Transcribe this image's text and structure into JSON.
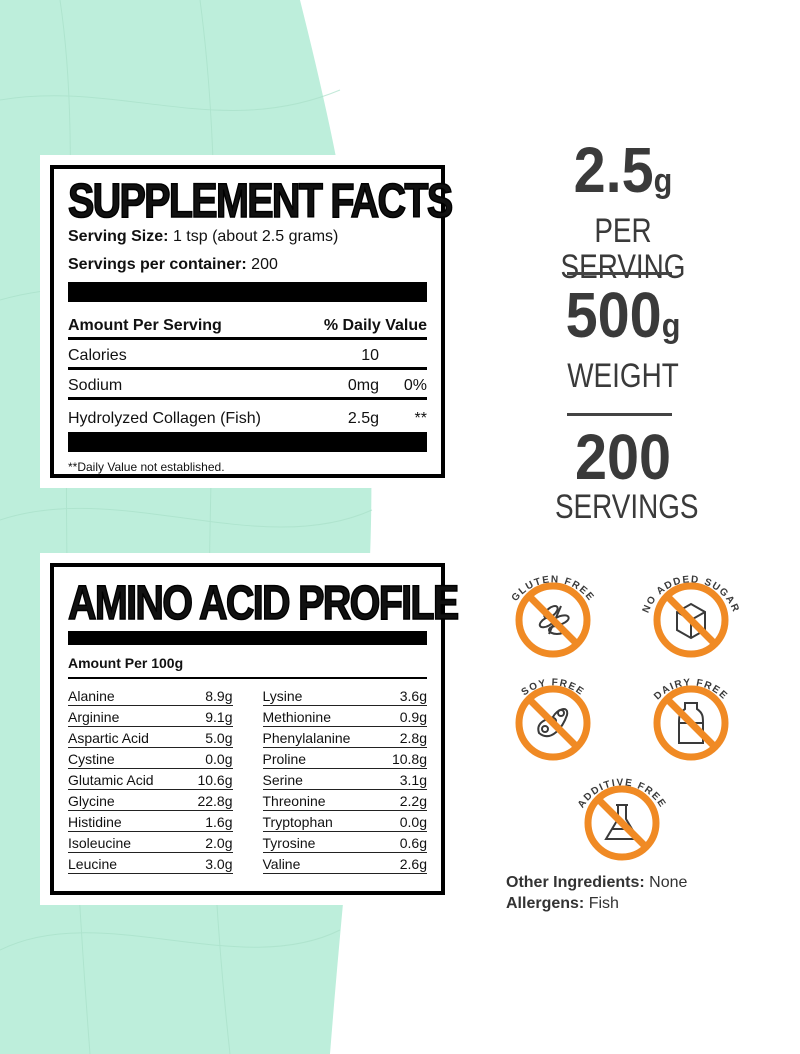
{
  "supplement_facts": {
    "title": "SUPPLEMENT FACTS",
    "serving_size_label": "Serving Size:",
    "serving_size": "1 tsp (about 2.5 grams)",
    "servings_label": "Servings per container:",
    "servings": "200",
    "amount_header": "Amount Per Serving",
    "dv_header": "% Daily Value",
    "rows": [
      {
        "name": "Calories",
        "amount": "10",
        "dv": ""
      },
      {
        "name": "Sodium",
        "amount": "0mg",
        "dv": "0%"
      },
      {
        "name": "Hydrolyzed Collagen (Fish)",
        "amount": "2.5g",
        "dv": "**"
      }
    ],
    "footnote": "**Daily Value not established."
  },
  "amino": {
    "title": "AMINO ACID PROFILE",
    "header": "Amount Per 100g",
    "left": [
      {
        "n": "Alanine",
        "v": "8.9g"
      },
      {
        "n": "Arginine",
        "v": "9.1g"
      },
      {
        "n": "Aspartic Acid",
        "v": "5.0g"
      },
      {
        "n": "Cystine",
        "v": "0.0g"
      },
      {
        "n": "Glutamic Acid",
        "v": "10.6g"
      },
      {
        "n": "Glycine",
        "v": "22.8g"
      },
      {
        "n": "Histidine",
        "v": "1.6g"
      },
      {
        "n": "Isoleucine",
        "v": "2.0g"
      },
      {
        "n": "Leucine",
        "v": "3.0g"
      }
    ],
    "right": [
      {
        "n": "Lysine",
        "v": "3.6g"
      },
      {
        "n": "Methionine",
        "v": "0.9g"
      },
      {
        "n": "Phenylalanine",
        "v": "2.8g"
      },
      {
        "n": "Proline",
        "v": "10.8g"
      },
      {
        "n": "Serine",
        "v": "3.1g"
      },
      {
        "n": "Threonine",
        "v": "2.2g"
      },
      {
        "n": "Tryptophan",
        "v": "0.0g"
      },
      {
        "n": "Tyrosine",
        "v": "0.6g"
      },
      {
        "n": "Valine",
        "v": "2.6g"
      }
    ]
  },
  "stats": [
    {
      "value": "2.5",
      "unit": "g",
      "label": "PER SERVING"
    },
    {
      "value": "500",
      "unit": "g",
      "label": "WEIGHT"
    },
    {
      "value": "200",
      "unit": "",
      "label": "SERVINGS"
    }
  ],
  "badges": [
    {
      "label": "GLUTEN FREE",
      "icon": "wheat-icon"
    },
    {
      "label": "NO ADDED SUGAR",
      "icon": "sugar-cube-icon"
    },
    {
      "label": "SOY FREE",
      "icon": "soybean-icon"
    },
    {
      "label": "DAIRY FREE",
      "icon": "milk-bottle-icon"
    },
    {
      "label": "ADDITIVE FREE",
      "icon": "flask-icon"
    }
  ],
  "other_ingredients": {
    "label": "Other Ingredients:",
    "value": "None"
  },
  "allergens": {
    "label": "Allergens:",
    "value": "Fish"
  },
  "colors": {
    "mint": "#bdeedb",
    "orange": "#f08a24",
    "gray": "#3a3a3a"
  }
}
